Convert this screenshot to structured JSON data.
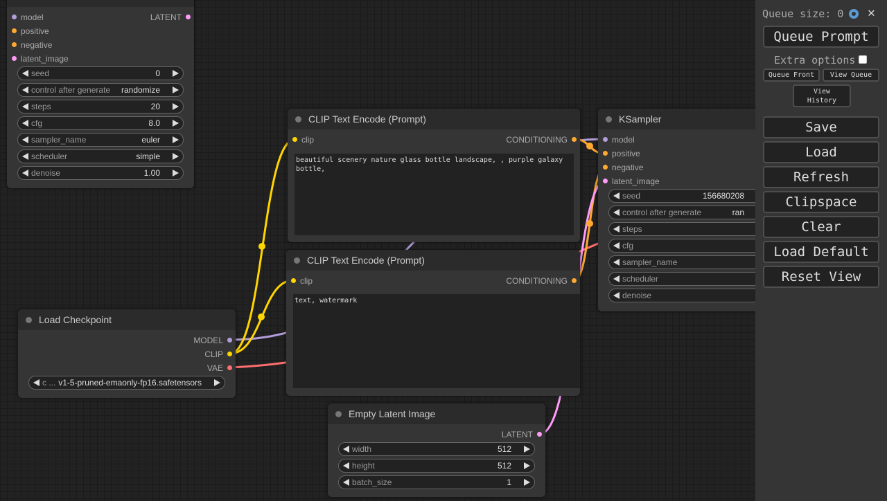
{
  "nodes": [
    {
      "inputs": [
        {
          "name": "model",
          "color": "#b39ddb"
        },
        {
          "name": "positive",
          "color": "#ffa931"
        },
        {
          "name": "negative",
          "color": "#ffa931"
        },
        {
          "name": "latent_image",
          "color": "#ff9cf9"
        }
      ],
      "outputs": [
        {
          "name": "LATENT",
          "color": "#ff9cf9"
        }
      ],
      "widgets": [
        {
          "name": "seed",
          "value": "0"
        },
        {
          "name": "control after generate",
          "value": "randomize"
        },
        {
          "name": "steps",
          "value": "20"
        },
        {
          "name": "cfg",
          "value": "8.0"
        },
        {
          "name": "sampler_name",
          "value": "euler"
        },
        {
          "name": "scheduler",
          "value": "simple"
        },
        {
          "name": "denoise",
          "value": "1.00"
        }
      ]
    },
    {
      "title": "CLIP Text Encode (Prompt)",
      "inputs": [
        {
          "name": "clip",
          "color": "#ffd500"
        }
      ],
      "outputs": [
        {
          "name": "CONDITIONING",
          "color": "#ffa931"
        }
      ],
      "text": "beautiful scenery nature glass bottle landscape, , purple galaxy bottle,"
    },
    {
      "title": "CLIP Text Encode (Prompt)",
      "inputs": [
        {
          "name": "clip",
          "color": "#ffd500"
        }
      ],
      "outputs": [
        {
          "name": "CONDITIONING",
          "color": "#ffa931"
        }
      ],
      "text": "text, watermark"
    },
    {
      "title": "KSampler",
      "inputs": [
        {
          "name": "model",
          "color": "#b39ddb"
        },
        {
          "name": "positive",
          "color": "#ffa931"
        },
        {
          "name": "negative",
          "color": "#ffa931"
        },
        {
          "name": "latent_image",
          "color": "#ff9cf9"
        }
      ],
      "widgets": [
        {
          "name": "seed",
          "value": "156680208"
        },
        {
          "name": "control after generate",
          "value": "ran"
        },
        {
          "name": "steps"
        },
        {
          "name": "cfg"
        },
        {
          "name": "sampler_name"
        },
        {
          "name": "scheduler"
        },
        {
          "name": "denoise"
        }
      ]
    },
    {
      "title": "Load Checkpoint",
      "outputs": [
        {
          "name": "MODEL",
          "color": "#b39ddb"
        },
        {
          "name": "CLIP",
          "color": "#ffd500"
        },
        {
          "name": "VAE",
          "color": "#ff6e6e"
        }
      ],
      "widgets": [
        {
          "name": "c ...",
          "value": "v1-5-pruned-emaonly-fp16.safetensors"
        }
      ]
    },
    {
      "title": "Empty Latent Image",
      "outputs": [
        {
          "name": "LATENT",
          "color": "#ff9cf9"
        }
      ],
      "widgets": [
        {
          "name": "width",
          "value": "512"
        },
        {
          "name": "height",
          "value": "512"
        },
        {
          "name": "batch_size",
          "value": "1"
        }
      ]
    }
  ],
  "menu": {
    "queue_size": "Queue size: 0",
    "close": "✕",
    "queue_prompt": "Queue Prompt",
    "extra_options": "Extra options",
    "queue_front": "Queue Front",
    "view_queue": "View Queue",
    "view_history": "View History",
    "buttons": [
      "Save",
      "Load",
      "Refresh",
      "Clipspace",
      "Clear",
      "Load Default",
      "Reset View"
    ]
  }
}
